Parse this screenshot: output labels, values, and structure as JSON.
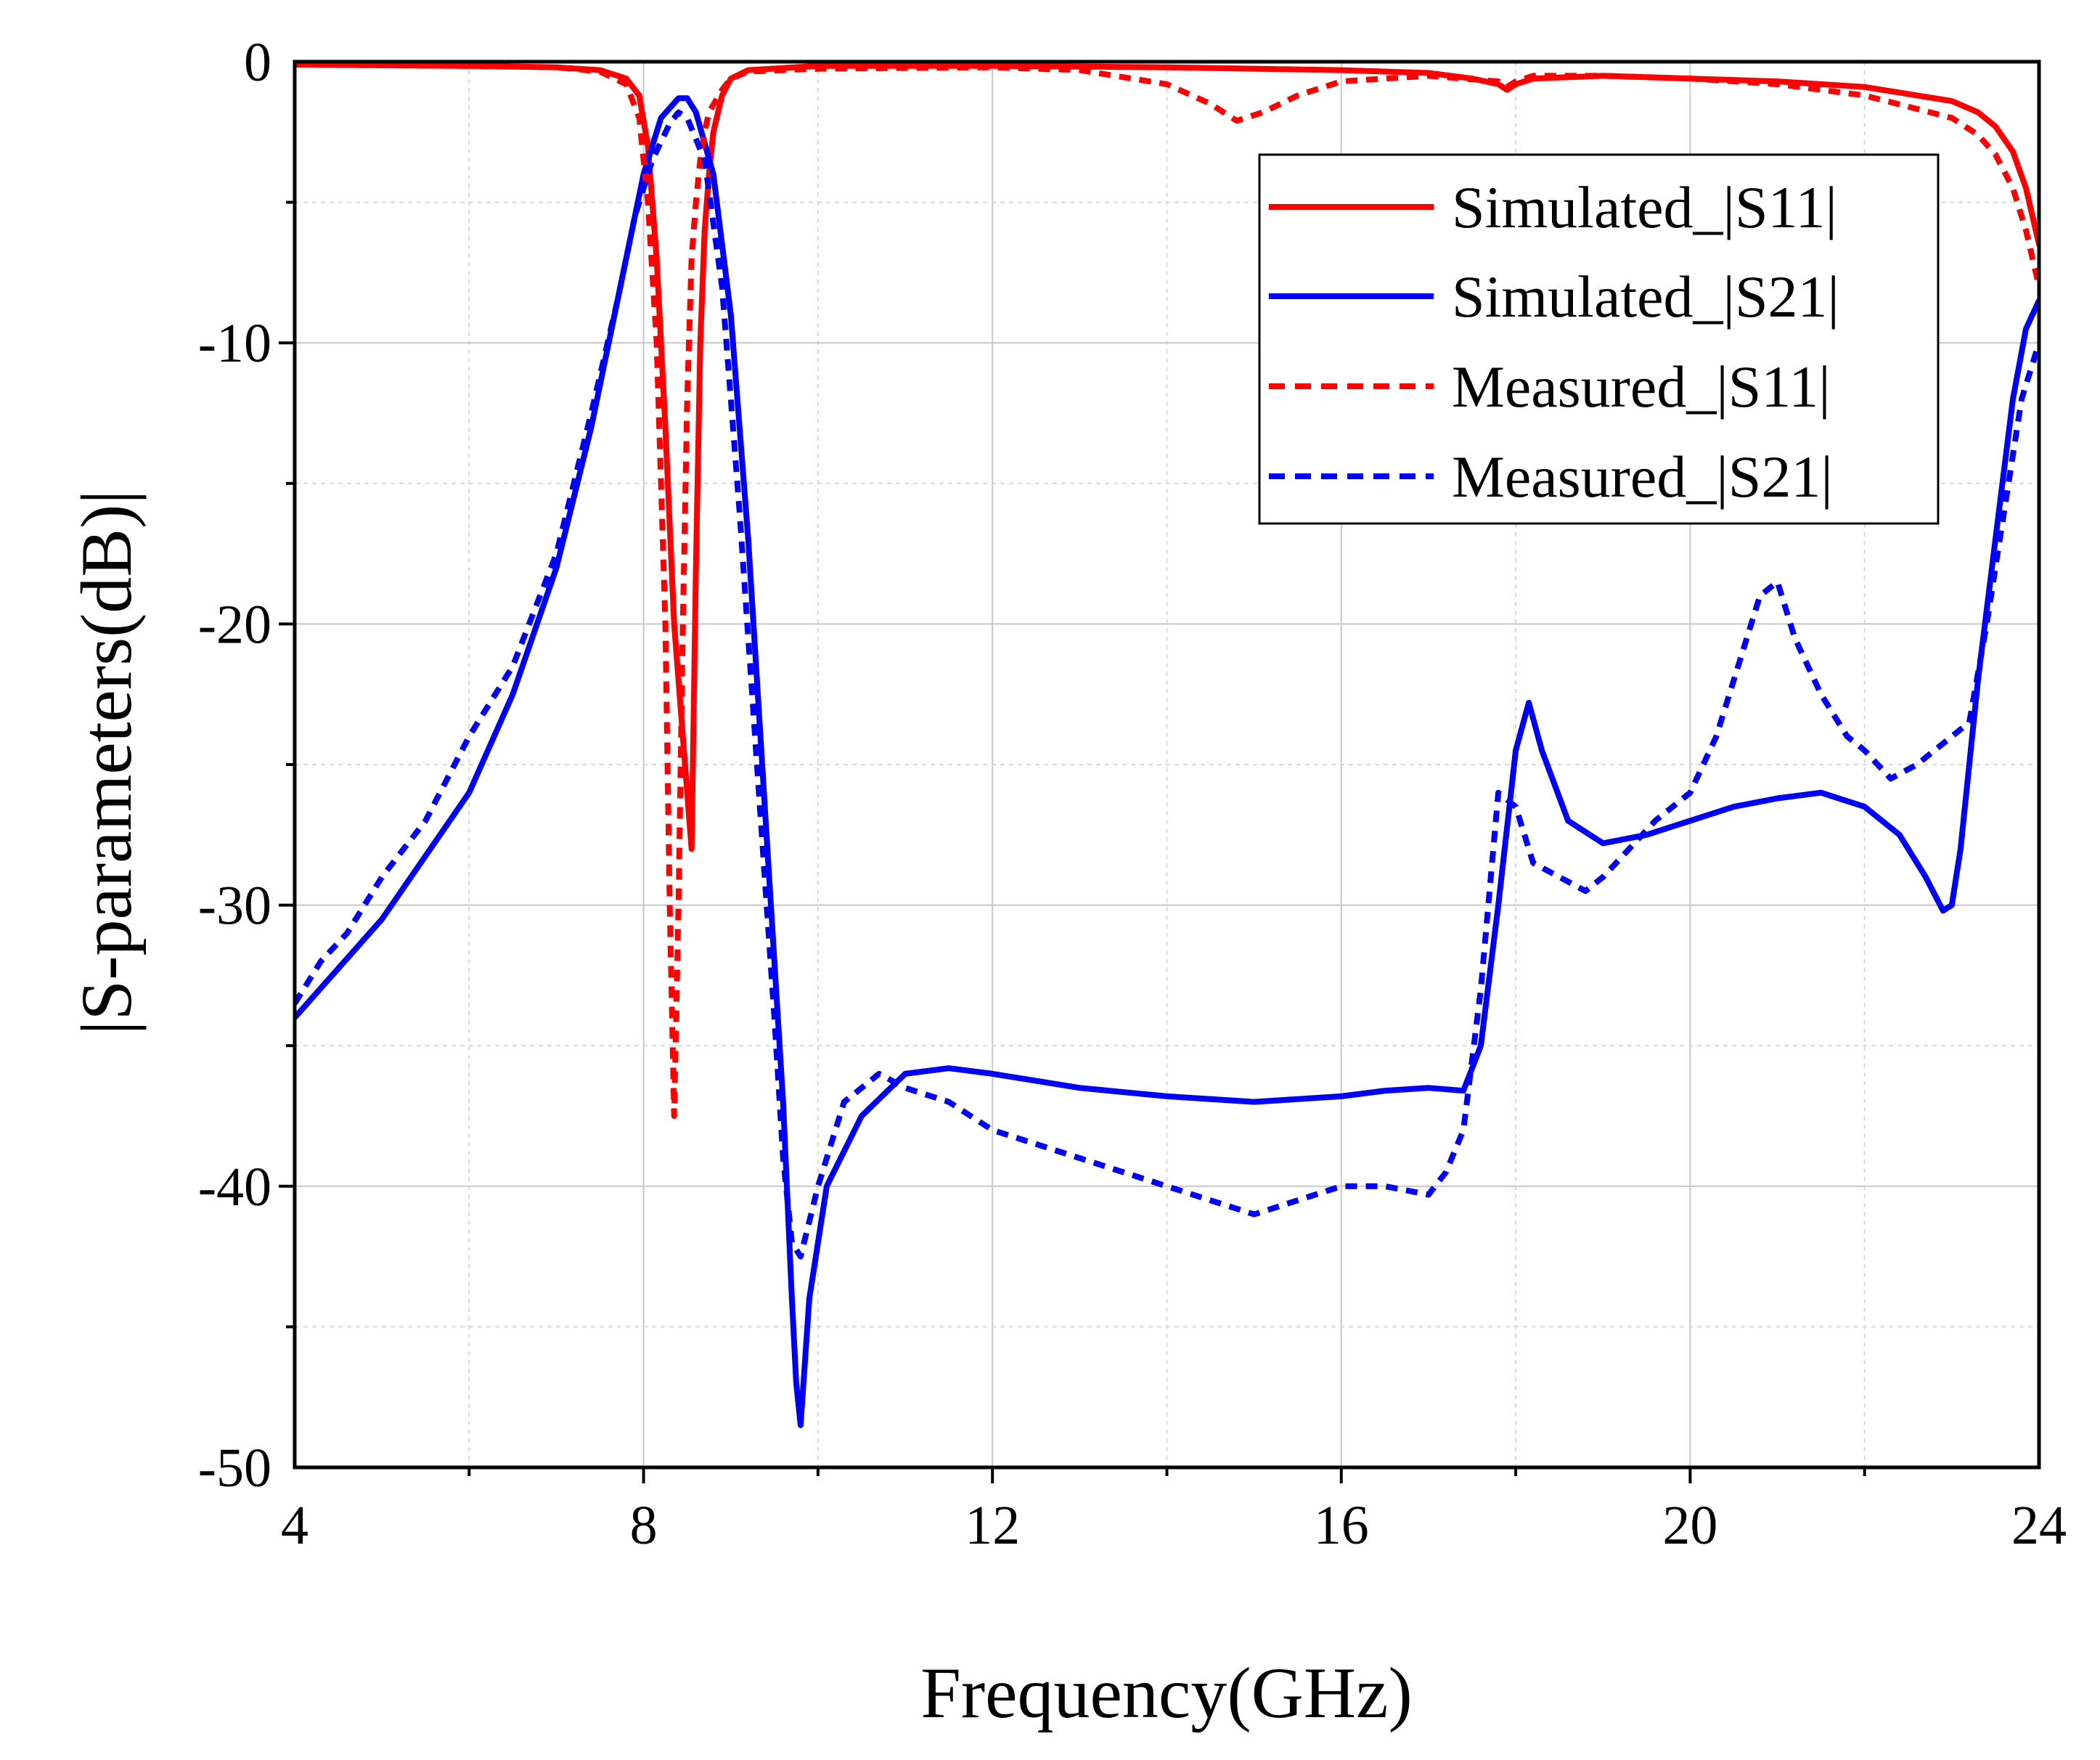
{
  "chart_data": {
    "type": "line",
    "title": "",
    "xlabel": "Frequency(GHz)",
    "ylabel": "|S-parameters(dB)|",
    "xlim": [
      4,
      24
    ],
    "ylim": [
      -50,
      0
    ],
    "xticks": [
      4,
      8,
      12,
      16,
      20,
      24
    ],
    "yticks": [
      0,
      -10,
      -20,
      -30,
      -40,
      -50
    ],
    "xtick_labels": [
      "4",
      "8",
      "12",
      "16",
      "20",
      "24"
    ],
    "ytick_labels": [
      "0",
      "-10",
      "-20",
      "-30",
      "-40",
      "-50"
    ],
    "grid": true,
    "legend_position": "top-right",
    "series": [
      {
        "name": "Simulated_|S11|",
        "color": "#ff0000",
        "style": "solid",
        "x": [
          4,
          6,
          7,
          7.5,
          7.8,
          7.95,
          8.05,
          8.15,
          8.25,
          8.35,
          8.45,
          8.5,
          8.55,
          8.6,
          8.65,
          8.7,
          8.75,
          8.8,
          8.9,
          9.0,
          9.2,
          10,
          12,
          14,
          16,
          17,
          17.5,
          17.8,
          17.9,
          18.0,
          18.2,
          19,
          20,
          21,
          22,
          23,
          23.3,
          23.5,
          23.7,
          23.85,
          24
        ],
        "y": [
          -0.1,
          -0.15,
          -0.2,
          -0.3,
          -0.6,
          -1.2,
          -3,
          -7,
          -13,
          -20,
          -24,
          -26,
          -28,
          -18,
          -10,
          -6,
          -4,
          -2.5,
          -1.2,
          -0.6,
          -0.3,
          -0.15,
          -0.15,
          -0.2,
          -0.3,
          -0.4,
          -0.6,
          -0.8,
          -1.0,
          -0.8,
          -0.6,
          -0.5,
          -0.6,
          -0.7,
          -0.9,
          -1.4,
          -1.8,
          -2.3,
          -3.2,
          -4.5,
          -6.5
        ]
      },
      {
        "name": "Simulated_|S21|",
        "color": "#0000ff",
        "style": "solid",
        "x": [
          4,
          5,
          6,
          6.5,
          7,
          7.4,
          7.7,
          7.9,
          8.0,
          8.2,
          8.4,
          8.5,
          8.6,
          8.8,
          9.0,
          9.2,
          9.4,
          9.6,
          9.7,
          9.75,
          9.8,
          9.9,
          10.1,
          10.5,
          11,
          11.5,
          12,
          13,
          14,
          15,
          16,
          16.5,
          17,
          17.4,
          17.6,
          17.8,
          18.0,
          18.15,
          18.3,
          18.6,
          19,
          19.5,
          20,
          20.5,
          21,
          21.5,
          22,
          22.4,
          22.7,
          22.9,
          23.0,
          23.1,
          23.3,
          23.5,
          23.7,
          23.85,
          24
        ],
        "y": [
          -34,
          -30.5,
          -26,
          -22.5,
          -18,
          -13,
          -8.5,
          -5.5,
          -4,
          -2,
          -1.3,
          -1.3,
          -1.8,
          -4,
          -9,
          -17,
          -27,
          -37,
          -44,
          -47,
          -48.5,
          -44,
          -40,
          -37.5,
          -36,
          -35.8,
          -36,
          -36.5,
          -36.8,
          -37,
          -36.8,
          -36.6,
          -36.5,
          -36.6,
          -35,
          -30,
          -24.5,
          -22.8,
          -24.5,
          -27,
          -27.8,
          -27.5,
          -27,
          -26.5,
          -26.2,
          -26,
          -26.5,
          -27.5,
          -29,
          -30.2,
          -30,
          -28,
          -22,
          -17,
          -12,
          -9.5,
          -8.5
        ]
      },
      {
        "name": "Measured_|S11|",
        "color": "#ff0000",
        "style": "dashed",
        "x": [
          4,
          6,
          7,
          7.5,
          7.8,
          7.95,
          8.05,
          8.15,
          8.25,
          8.3,
          8.35,
          8.4,
          8.45,
          8.5,
          8.55,
          8.6,
          8.65,
          8.7,
          8.75,
          8.9,
          9.0,
          9.2,
          10,
          12,
          13,
          14,
          14.5,
          14.8,
          15.1,
          15.5,
          16,
          17,
          17.8,
          17.9,
          18.0,
          18.2,
          19,
          20,
          21,
          22,
          23,
          23.3,
          23.5,
          23.7,
          23.85,
          24
        ],
        "y": [
          -0.1,
          -0.15,
          -0.2,
          -0.35,
          -0.8,
          -2,
          -5,
          -10,
          -20,
          -30,
          -37.5,
          -30,
          -20,
          -12,
          -7,
          -5,
          -3.5,
          -2.5,
          -1.8,
          -1.0,
          -0.6,
          -0.35,
          -0.25,
          -0.2,
          -0.3,
          -0.8,
          -1.5,
          -2.1,
          -1.8,
          -1.2,
          -0.7,
          -0.5,
          -0.7,
          -0.9,
          -0.7,
          -0.5,
          -0.5,
          -0.6,
          -0.8,
          -1.2,
          -2.0,
          -2.6,
          -3.3,
          -4.5,
          -6,
          -8
        ]
      },
      {
        "name": "Measured_|S21|",
        "color": "#0000ff",
        "style": "dashed",
        "x": [
          4,
          4.3,
          4.6,
          5,
          5.5,
          6,
          6.5,
          7,
          7.4,
          7.7,
          7.9,
          8.1,
          8.3,
          8.4,
          8.5,
          8.7,
          8.9,
          9.1,
          9.3,
          9.5,
          9.6,
          9.7,
          9.8,
          10.0,
          10.3,
          10.7,
          11,
          11.5,
          12,
          12.5,
          13,
          13.5,
          14,
          14.5,
          15,
          15.5,
          16,
          16.5,
          17,
          17.2,
          17.4,
          17.6,
          17.8,
          18.0,
          18.2,
          18.5,
          18.8,
          19,
          19.3,
          19.6,
          20,
          20.3,
          20.6,
          20.8,
          21.0,
          21.2,
          21.5,
          21.8,
          22,
          22.3,
          22.6,
          22.8,
          23.0,
          23.2,
          23.4,
          23.6,
          23.8,
          24
        ],
        "y": [
          -33.5,
          -32,
          -31,
          -29,
          -27,
          -24,
          -21.5,
          -17.5,
          -12.5,
          -8.5,
          -5.5,
          -3.5,
          -2.2,
          -1.8,
          -2,
          -3.5,
          -8,
          -16,
          -25,
          -34,
          -39,
          -42,
          -42.5,
          -40,
          -37,
          -36,
          -36.5,
          -37,
          -38,
          -38.5,
          -39,
          -39.5,
          -40,
          -40.5,
          -41,
          -40.5,
          -40,
          -40,
          -40.3,
          -39.5,
          -38,
          -33,
          -26,
          -26.5,
          -28.5,
          -29,
          -29.5,
          -29,
          -28,
          -27,
          -26,
          -24,
          -21,
          -19,
          -18.5,
          -20.5,
          -22.5,
          -24,
          -24.5,
          -25.5,
          -25,
          -24.5,
          -24,
          -23.5,
          -20,
          -16,
          -12,
          -10
        ]
      }
    ]
  }
}
